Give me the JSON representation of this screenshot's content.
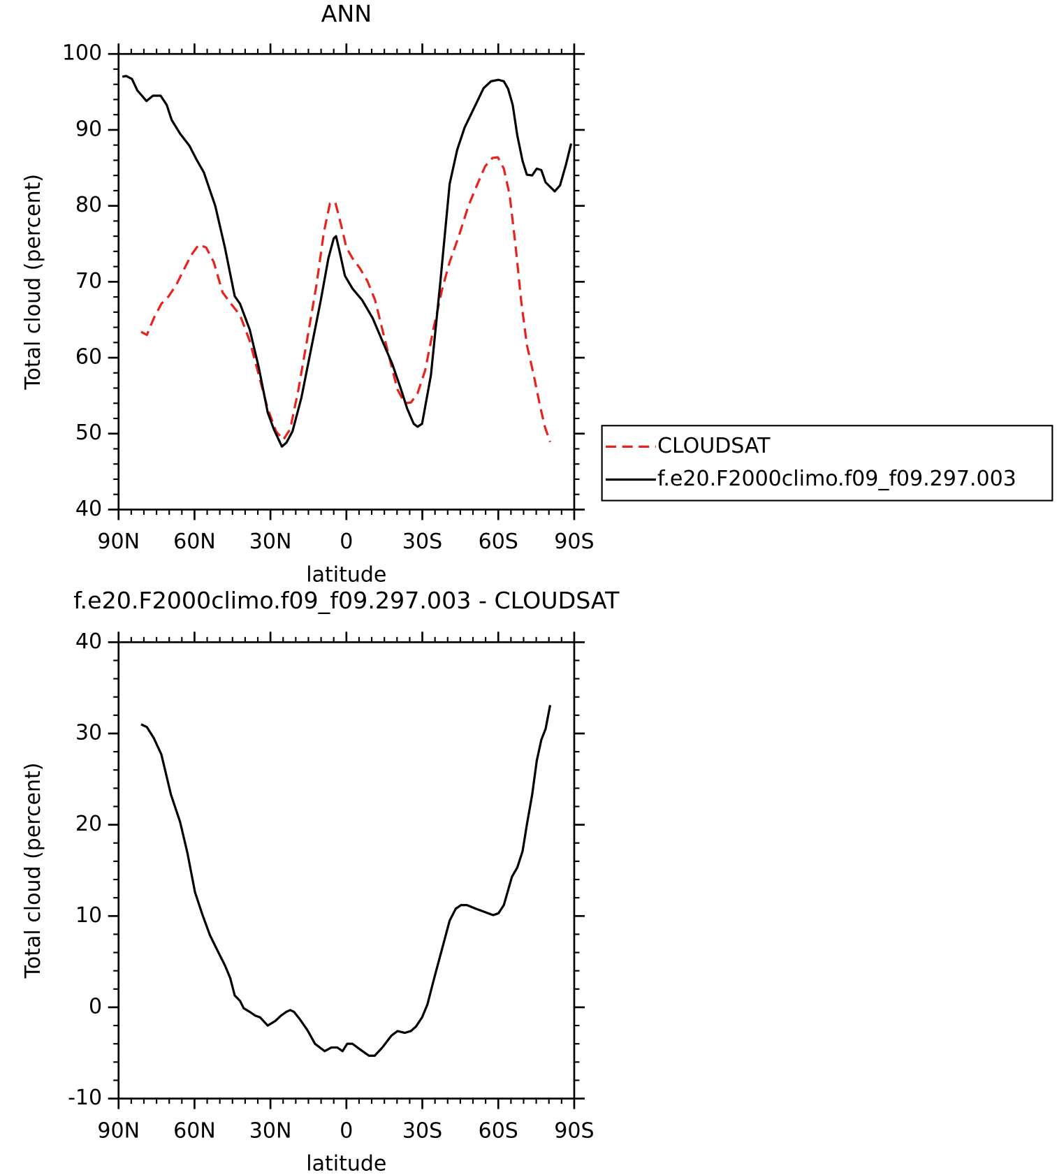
{
  "chart_data": [
    {
      "type": "line",
      "title": "ANN",
      "xlabel": "latitude",
      "ylabel": "Total cloud (percent)",
      "xlim": [
        90,
        -90
      ],
      "ylim": [
        40,
        100
      ],
      "xticks": [
        {
          "value": 90,
          "label": "90N"
        },
        {
          "value": 60,
          "label": "60N"
        },
        {
          "value": 30,
          "label": "30N"
        },
        0,
        {
          "value": -30,
          "label": "30S"
        },
        {
          "value": -60,
          "label": "60S"
        },
        {
          "value": -90,
          "label": "90S"
        }
      ],
      "yticks": [
        40,
        50,
        60,
        70,
        80,
        90,
        100
      ],
      "legend": "right",
      "series": [
        {
          "name": "CLOUDSAT",
          "color": "#e8231e",
          "dash": true,
          "x": [
            81.1,
            78.8,
            76.1,
            73.1,
            70.2,
            67.2,
            64.2,
            61.3,
            58.3,
            55.4,
            52.4,
            48.9,
            45.6,
            42,
            38.2,
            34.6,
            31.1,
            27.8,
            24.9,
            22.2,
            19,
            15.4,
            11.8,
            8.9,
            6.5,
            4.4,
            2.1,
            0,
            -2.4,
            -5.3,
            -8.3,
            -11.3,
            -14.2,
            -17.2,
            -20.2,
            -23.1,
            -25.5,
            -28.1,
            -31.1,
            -34.3,
            -37.9,
            -40.8,
            -44.4,
            -48.2,
            -51.8,
            -54.8,
            -57.7,
            -59.8,
            -62.2,
            -64.5,
            -66.9,
            -69,
            -71.3,
            -74,
            -76.4,
            -78.4,
            -80.5
          ],
          "values": [
            63.4,
            63,
            65.2,
            67.1,
            68.1,
            69.6,
            71.6,
            73.5,
            74.9,
            74.5,
            72.6,
            68.6,
            67.1,
            65.6,
            62.2,
            57.7,
            53.3,
            50.3,
            49.2,
            50.6,
            55.7,
            62.6,
            69.6,
            76.5,
            80.3,
            80.5,
            77.5,
            74.5,
            73.1,
            71.8,
            70.1,
            67.6,
            63.7,
            59.7,
            55.8,
            54,
            54.1,
            55.3,
            58.3,
            63.7,
            69.1,
            72.6,
            76,
            80,
            82.9,
            85.2,
            86.3,
            86.4,
            84.9,
            81.4,
            74.5,
            67.6,
            61.7,
            57.7,
            53.8,
            50.9,
            48.9
          ]
        },
        {
          "name": "f.e20.F2000climo.f09_f09.297.003",
          "color": "#000000",
          "dash": false,
          "x": [
            88.5,
            87,
            84.7,
            82.6,
            79,
            76.4,
            73.4,
            71,
            69,
            65.7,
            62,
            59.2,
            56.3,
            51.8,
            48,
            44.1,
            42,
            38.2,
            34.6,
            31.1,
            28.7,
            25.5,
            23.7,
            21.3,
            17.8,
            13.9,
            10.1,
            7.1,
            5,
            4.1,
            2.7,
            0.6,
            -2.4,
            -6.2,
            -10.4,
            -14.2,
            -18.1,
            -21.6,
            -24,
            -26.6,
            -28.1,
            -29.9,
            -33.4,
            -37,
            -40.8,
            -43.8,
            -46.7,
            -50.3,
            -54.2,
            -57.1,
            -60.1,
            -62.2,
            -63.9,
            -65.7,
            -67.5,
            -69.6,
            -71.3,
            -73.4,
            -75.2,
            -77,
            -78.7,
            -80.8,
            -82.3,
            -84.4,
            -86.7,
            -88.8
          ],
          "values": [
            97,
            97.1,
            96.7,
            95.2,
            93.8,
            94.5,
            94.5,
            93.3,
            91.3,
            89.5,
            87.9,
            86.1,
            84.4,
            80,
            74.5,
            68.1,
            67.1,
            63.7,
            58.7,
            52.8,
            50.6,
            48.3,
            48.8,
            50.3,
            54.7,
            61.2,
            67.6,
            73.1,
            75.7,
            76,
            74,
            70.8,
            69.1,
            67.6,
            65.2,
            62.2,
            59.2,
            55.8,
            53.3,
            51.3,
            50.9,
            51.3,
            57.7,
            69.6,
            82.9,
            87.4,
            90.3,
            92.8,
            95.5,
            96.4,
            96.6,
            96.4,
            95.4,
            93.3,
            89.3,
            85.9,
            84.1,
            84,
            84.9,
            84.7,
            83.1,
            82.4,
            81.9,
            82.7,
            85.4,
            88.2
          ]
        }
      ]
    },
    {
      "type": "line",
      "title": "f.e20.F2000climo.f09_f09.297.003 - CLOUDSAT",
      "xlabel": "latitude",
      "ylabel": "Total cloud (percent)",
      "xlim": [
        90,
        -90
      ],
      "ylim": [
        -10,
        40
      ],
      "xticks": [
        {
          "value": 90,
          "label": "90N"
        },
        {
          "value": 60,
          "label": "60N"
        },
        {
          "value": 30,
          "label": "30N"
        },
        0,
        {
          "value": -30,
          "label": "30S"
        },
        {
          "value": -60,
          "label": "60S"
        },
        {
          "value": -90,
          "label": "90S"
        }
      ],
      "yticks": [
        -10,
        0,
        10,
        20,
        30,
        40
      ],
      "series": [
        {
          "color": "#000000",
          "dash": false,
          "x": [
            81.1,
            78.8,
            76.1,
            73.1,
            69.3,
            65.7,
            62.8,
            59.8,
            56.8,
            53.9,
            50.9,
            48,
            45.9,
            44.1,
            42,
            40.6,
            38.2,
            36.1,
            34.1,
            31.1,
            28.1,
            25.8,
            23.7,
            22.2,
            20.7,
            18.4,
            15.4,
            12.4,
            8.6,
            5.9,
            3.6,
            1.5,
            -0.3,
            -2.4,
            -5.3,
            -8.9,
            -11.2,
            -14.2,
            -17.8,
            -20.2,
            -23.1,
            -25.5,
            -27.5,
            -29.9,
            -32,
            -34.3,
            -37.9,
            -40.8,
            -43.2,
            -45.3,
            -47.6,
            -51.2,
            -55,
            -58,
            -60.1,
            -62.2,
            -65.4,
            -67.5,
            -69.6,
            -71.3,
            -73.4,
            -75.2,
            -77,
            -78.7,
            -80.5
          ],
          "values": [
            31,
            30.7,
            29.5,
            27.7,
            23.3,
            20.3,
            16.9,
            12.6,
            10.1,
            7.9,
            6.2,
            4.6,
            3.2,
            1.3,
            0.7,
            -0.1,
            -0.5,
            -0.9,
            -1.1,
            -2,
            -1.5,
            -0.9,
            -0.5,
            -0.3,
            -0.5,
            -1.3,
            -2.5,
            -4,
            -4.8,
            -4.4,
            -4.4,
            -4.8,
            -4,
            -4,
            -4.6,
            -5.3,
            -5.3,
            -4.4,
            -3.1,
            -2.6,
            -2.8,
            -2.6,
            -2.1,
            -1.1,
            0.3,
            2.8,
            6.5,
            9.5,
            10.8,
            11.2,
            11.2,
            10.8,
            10.4,
            10.1,
            10.3,
            11.2,
            14.3,
            15.3,
            17.1,
            20,
            23.3,
            27,
            29.3,
            30.5,
            33.1
          ]
        }
      ]
    }
  ]
}
